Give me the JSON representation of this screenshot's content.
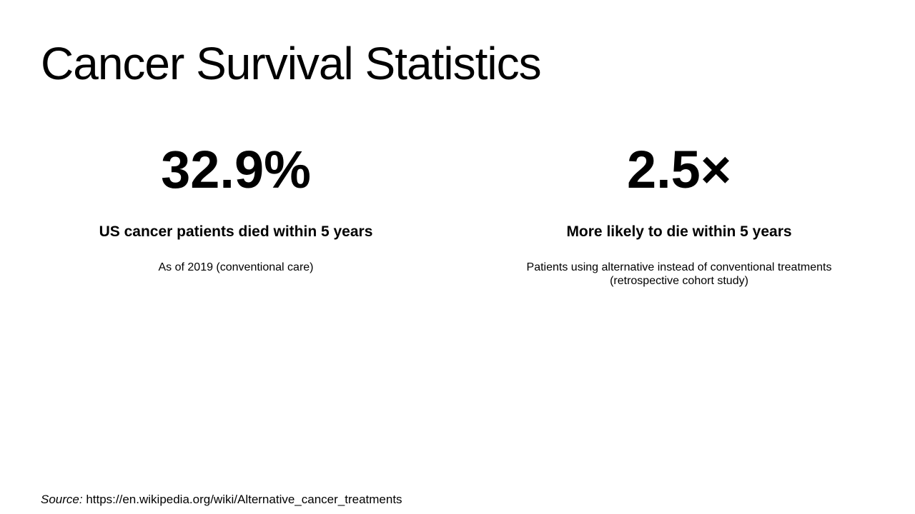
{
  "title": "Cancer Survival Statistics",
  "stats": [
    {
      "value": "32.9%",
      "heading": "US cancer patients died within 5 years",
      "subtext": [
        "As of 2019 (conventional care)"
      ]
    },
    {
      "value": "2.5×",
      "heading": "More likely to die within 5 years",
      "subtext": [
        "Patients using alternative instead of conventional treatments",
        "(retrospective cohort study)"
      ]
    }
  ],
  "source": {
    "label": "Source:",
    "url": "https://en.wikipedia.org/wiki/Alternative_cancer_treatments"
  }
}
